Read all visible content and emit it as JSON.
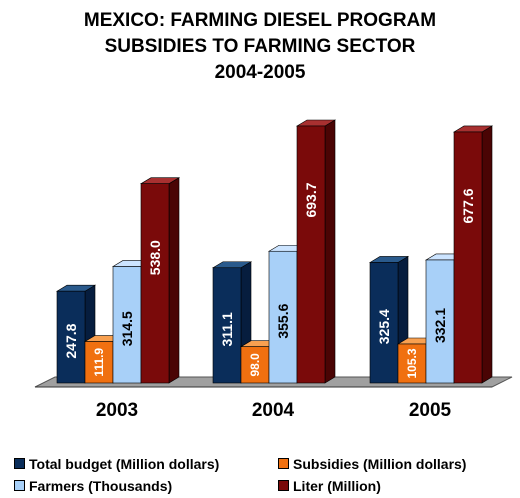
{
  "chart_data": {
    "type": "bar",
    "title_lines": [
      "MEXICO: FARMING DIESEL PROGRAM",
      "SUBSIDIES TO FARMING SECTOR",
      "2004-2005"
    ],
    "categories": [
      "2003",
      "2004",
      "2005"
    ],
    "series": [
      {
        "name": "Total budget (Million dollars)",
        "values": [
          247.8,
          311.1,
          325.4
        ],
        "color": "#0a2d5a",
        "side": "#061d3e",
        "top": "#2a5a8c",
        "label_color": "#ffffff",
        "labels": [
          "247.8",
          "311.1",
          "325.4"
        ]
      },
      {
        "name": "Subsidies (Million dollars)",
        "values": [
          111.9,
          98.0,
          105.3
        ],
        "color": "#f07010",
        "side": "#b04e08",
        "top": "#f8a050",
        "label_color": "#ffffff",
        "labels": [
          "111.9",
          "98.0",
          "105.3"
        ]
      },
      {
        "name": "Farmers (Thousands)",
        "values": [
          314.5,
          355.6,
          332.1
        ],
        "color": "#a8d0f8",
        "side": "#6f98c8",
        "top": "#cce4ff",
        "label_color": "#000000",
        "labels": [
          "314.5",
          "355.6",
          "332.1"
        ]
      },
      {
        "name": "Liter (Million)",
        "values": [
          538.0,
          693.7,
          677.6
        ],
        "color": "#7a0a0a",
        "side": "#4a0404",
        "top": "#a83030",
        "label_color": "#ffffff",
        "labels": [
          "538.0",
          "693.7",
          "677.6"
        ]
      }
    ],
    "xlabel": "",
    "ylabel": "",
    "ylim": [
      0,
      693.7
    ],
    "grid": false,
    "legend_position": "bottom"
  }
}
